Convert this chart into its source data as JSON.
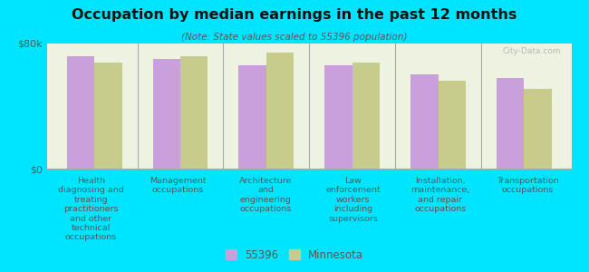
{
  "title": "Occupation by median earnings in the past 12 months",
  "subtitle": "(Note: State values scaled to 55396 population)",
  "background_color": "#00e5ff",
  "plot_bg_color": "#eef2e0",
  "categories": [
    "Health\ndiagnosing and\ntreating\npractitioners\nand other\ntechnical\noccupations",
    "Management\noccupations",
    "Architecture\nand\nengineering\noccupations",
    "Law\nenforcement\nworkers\nincluding\nsupervisors",
    "Installation,\nmaintenance,\nand repair\noccupations",
    "Transportation\noccupations"
  ],
  "values_55396": [
    72000,
    70000,
    66000,
    66000,
    60000,
    58000
  ],
  "values_mn": [
    68000,
    72000,
    74000,
    68000,
    56000,
    51000
  ],
  "color_55396": "#c9a0dc",
  "color_mn": "#c8cc8a",
  "ylim": [
    0,
    80000
  ],
  "ytick_labels": [
    "$0",
    "$80k"
  ],
  "legend_label_55396": "55396",
  "legend_label_mn": "Minnesota",
  "watermark": "City-Data.com",
  "bar_width": 0.32
}
